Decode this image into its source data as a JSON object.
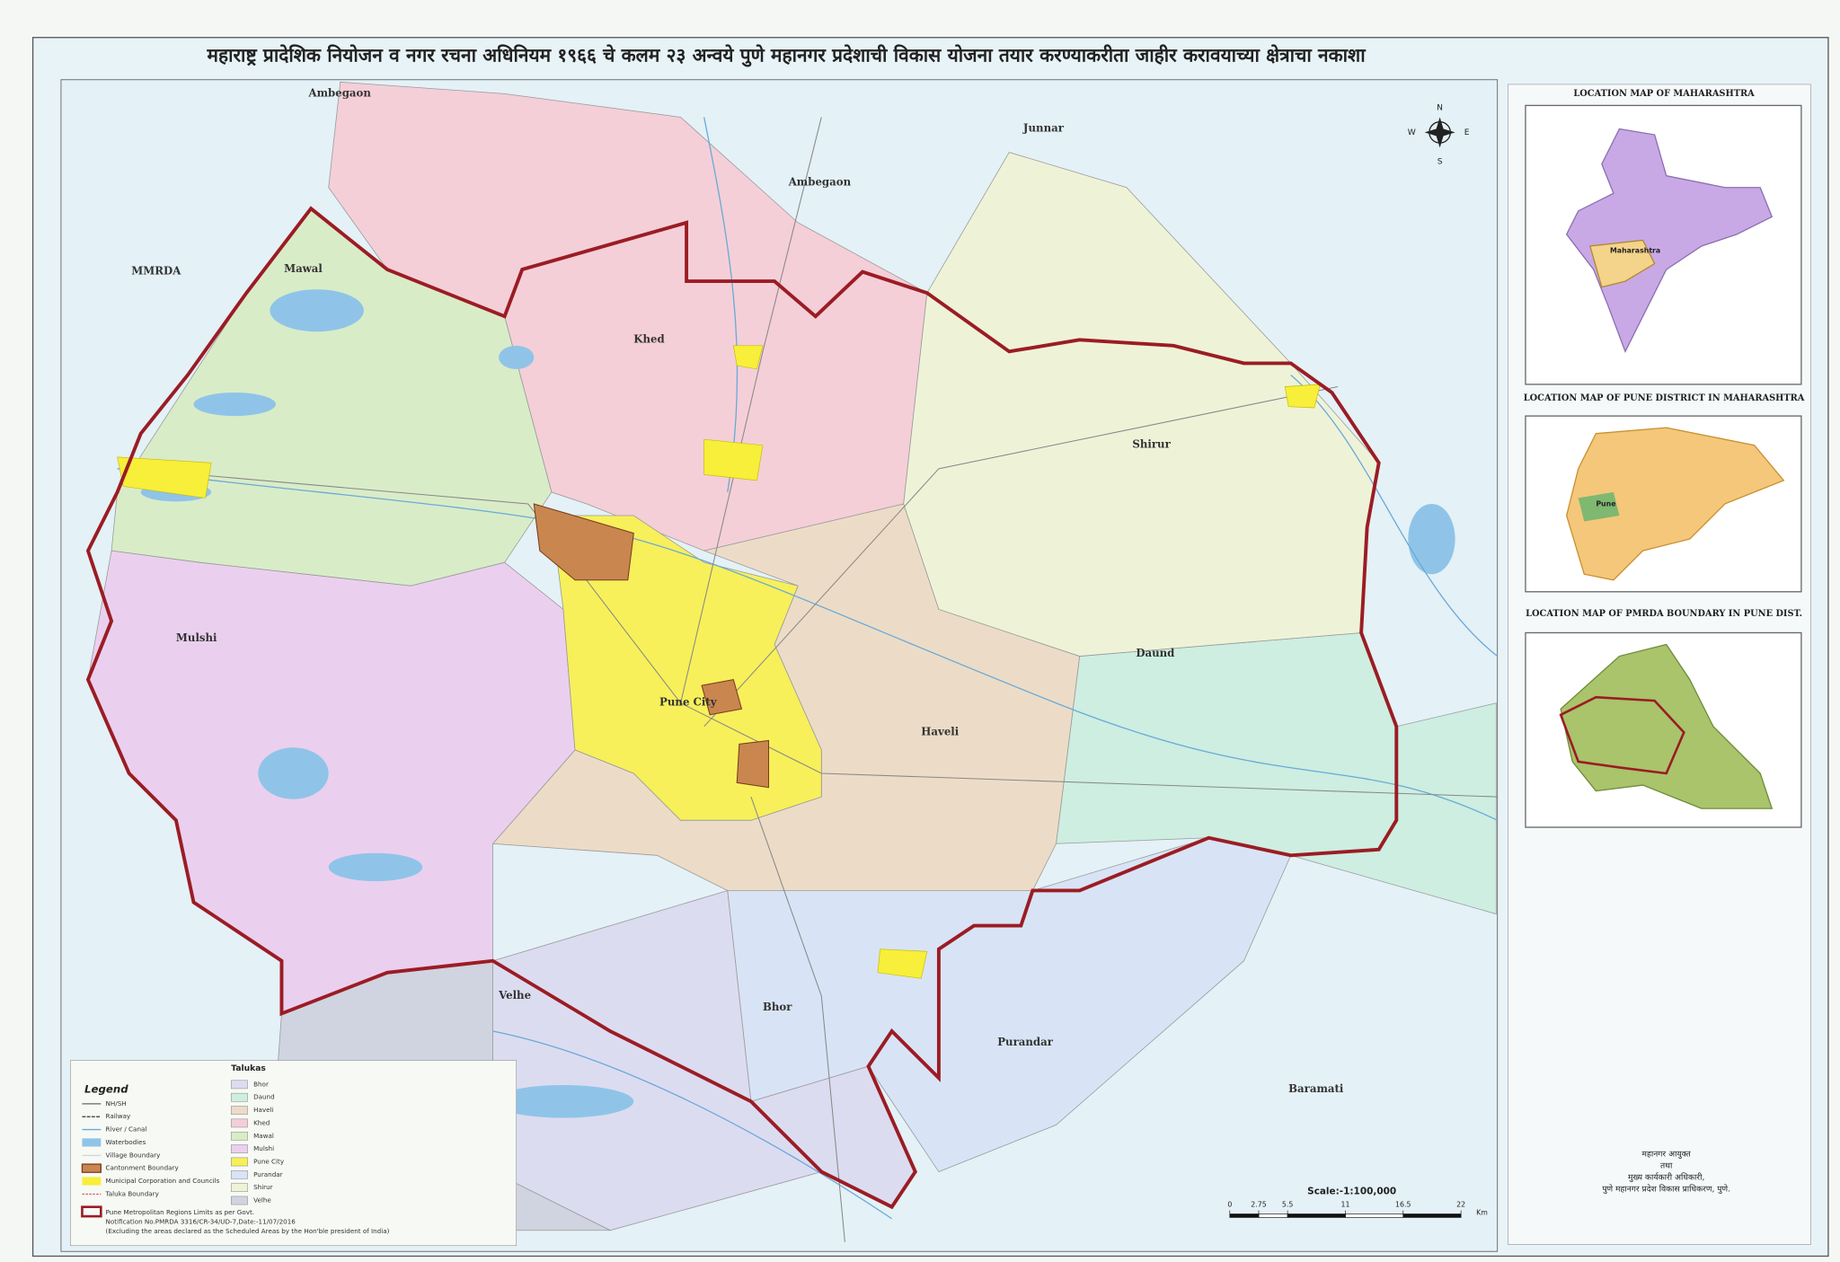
{
  "title": "महाराष्ट्र प्रादेशिक नियोजन व नगर रचना अधिनियम १९६६ चे कलम २३ अन्वये पुणे महानगर प्रदेशाची विकास योजना तयार करण्याकरीता जाहीर करावयाच्या क्षेत्राचा नकाशा",
  "places": [
    "Mawal",
    "Khed",
    "Shirur",
    "Mulshi",
    "Pune City",
    "Haveli",
    "Daund",
    "Bhor",
    "Velhe",
    "Purandar",
    "Junnar",
    "Ambegaon",
    "Ambegaon",
    "Baramati",
    "MMRDA"
  ],
  "compass": [
    "N",
    "E",
    "S",
    "W"
  ],
  "legend": {
    "title": "Legend",
    "items": [
      "NH/SH",
      "Railway",
      "River / Canal",
      "Waterbodies",
      "Village Boundary",
      "Cantonment Boundary",
      "Municipal Corporation and Councils",
      "Taluka Boundary"
    ],
    "pmrda": "Pune Metropolitan Regions Limits as per Govt.",
    "notification": "Notification No.PMRDA 3316/CR-34/UD-7,Date:-11/07/2016",
    "note": "(Excluding the areas declared as the Scheduled Areas by the Hon'ble president of India)"
  },
  "talukas": {
    "title": "Talukas",
    "items": [
      {
        "name": "Bhor",
        "color": "#dcdcf0"
      },
      {
        "name": "Daund",
        "color": "#cdeee0"
      },
      {
        "name": "Haveli",
        "color": "#ecdcc7"
      },
      {
        "name": "Khed",
        "color": "#f4cfd8"
      },
      {
        "name": "Mawal",
        "color": "#d9ecc8"
      },
      {
        "name": "Mulshi",
        "color": "#ead0ee"
      },
      {
        "name": "Pune City",
        "color": "#f7f05a"
      },
      {
        "name": "Purandar",
        "color": "#d8e4f5"
      },
      {
        "name": "Shirur",
        "color": "#eef3d8"
      },
      {
        "name": "Velhe",
        "color": "#d0d4e0"
      }
    ]
  },
  "insets": [
    "LOCATION MAP OF MAHARASHTRA",
    "LOCATION MAP OF PUNE DISTRICT IN MAHARASHTRA",
    "LOCATION MAP OF PMRDA BOUNDARY IN PUNE DIST."
  ],
  "inset_labels": [
    "Maharashtra",
    "Pune"
  ],
  "scale": {
    "label": "Scale:-1:100,000",
    "ticks": [
      0,
      2.75,
      5.5,
      11,
      16.5,
      22
    ],
    "unit": "Km"
  },
  "signature": [
    "महानगर आयुक्त",
    "तथा",
    "मुख्य कार्यकारी अधिकारी,",
    "पुणे महानगर प्रदेश विकास प्राधिकरण, पुणे."
  ]
}
